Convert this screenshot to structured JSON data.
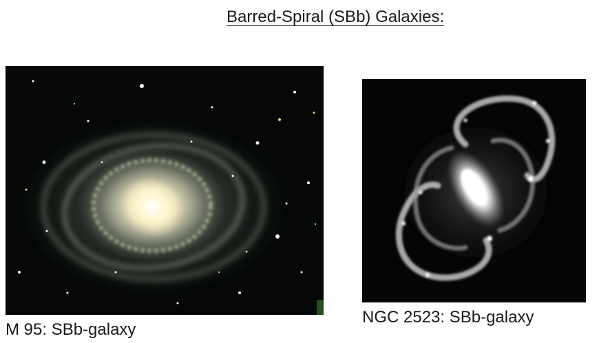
{
  "slide": {
    "title": "Barred-Spiral (SBb) Galaxies:"
  },
  "images": [
    {
      "caption": "M 95: SBb-galaxy",
      "colors": {
        "background": "#060807",
        "disk": "#8c9a88",
        "arms": "#c8c6ad",
        "core": "#fff8d8"
      }
    },
    {
      "caption": "NGC 2523: SBb-galaxy",
      "colors": {
        "background": "#050505",
        "arms": "#d9d9d9",
        "core": "#ffffff"
      }
    }
  ]
}
